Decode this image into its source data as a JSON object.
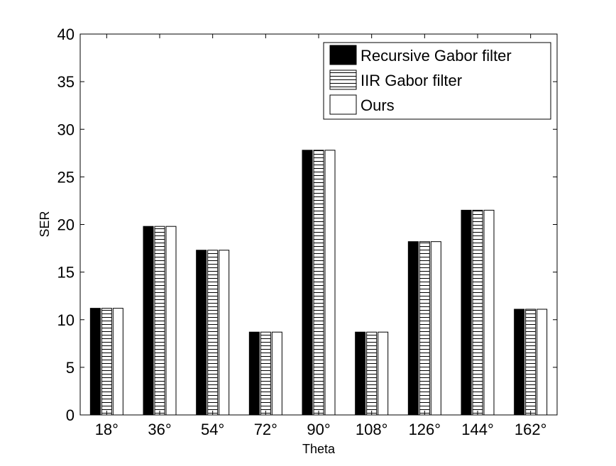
{
  "chart_data": {
    "type": "bar",
    "title": "",
    "xlabel": "Theta",
    "ylabel": "SER",
    "categories": [
      "18°",
      "36°",
      "54°",
      "72°",
      "90°",
      "108°",
      "126°",
      "144°",
      "162°"
    ],
    "ylim": [
      0,
      40
    ],
    "yticks": [
      "0",
      "5",
      "10",
      "15",
      "20",
      "25",
      "30",
      "35",
      "40"
    ],
    "grid": false,
    "legend_position": "top-right",
    "series": [
      {
        "name": "Recursive Gabor filter",
        "fill": "solid-black",
        "values": [
          11.2,
          19.8,
          17.3,
          8.7,
          27.8,
          8.7,
          18.2,
          21.5,
          11.1
        ]
      },
      {
        "name": "IIR Gabor filter",
        "fill": "horizontal-hatch",
        "values": [
          11.2,
          19.8,
          17.3,
          8.7,
          27.8,
          8.7,
          18.2,
          21.5,
          11.1
        ]
      },
      {
        "name": "Ours",
        "fill": "white",
        "values": [
          11.2,
          19.8,
          17.3,
          8.7,
          27.8,
          8.7,
          18.2,
          21.5,
          11.1
        ]
      }
    ]
  }
}
